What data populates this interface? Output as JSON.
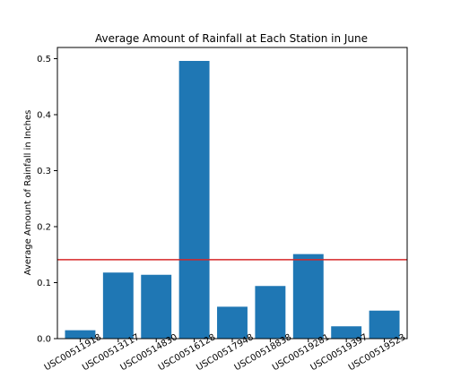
{
  "chart_data": {
    "type": "bar",
    "title": "Average Amount of Rainfall at Each Station in June",
    "xlabel": "",
    "ylabel": "Average Amount of Rainfall in Inches",
    "categories": [
      "USC00511918",
      "USC00513117",
      "USC00514830",
      "USC00516128",
      "USC00517948",
      "USC00518838",
      "USC00519281",
      "USC00519397",
      "USC00519523"
    ],
    "values": [
      0.015,
      0.118,
      0.114,
      0.496,
      0.057,
      0.094,
      0.151,
      0.022,
      0.05
    ],
    "ylim": [
      0,
      0.52
    ],
    "yticks": [
      0.0,
      0.1,
      0.2,
      0.3,
      0.4,
      0.5
    ],
    "ytick_labels": [
      "0.0",
      "0.1",
      "0.2",
      "0.3",
      "0.4",
      "0.5"
    ],
    "reference_line": 0.141,
    "bar_color": "#1f77b4",
    "line_color": "#d62728",
    "grid": false
  }
}
